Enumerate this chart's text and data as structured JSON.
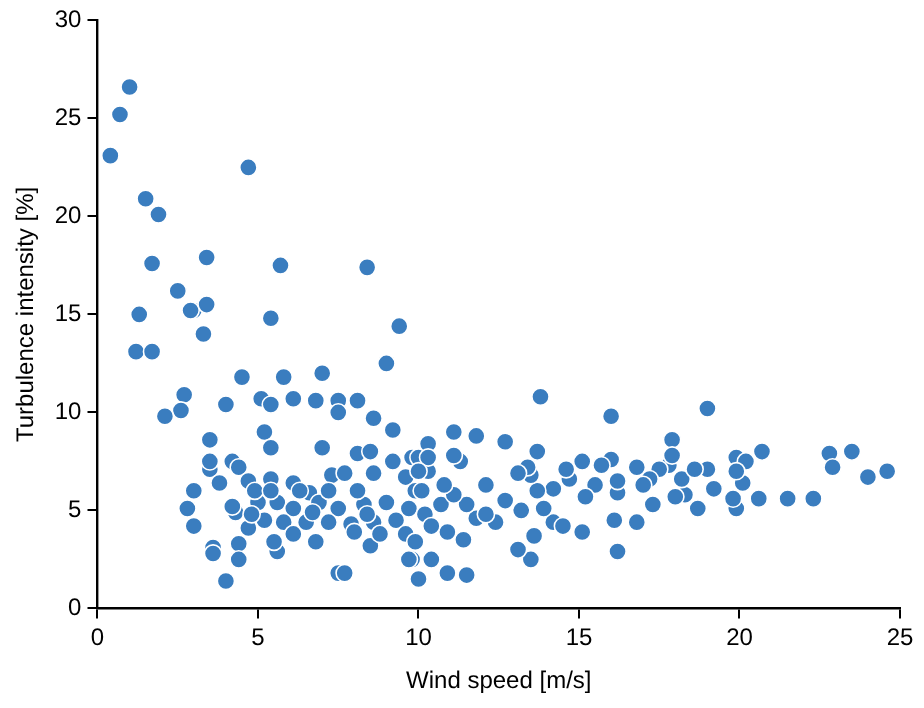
{
  "chart_data": {
    "type": "scatter",
    "xlabel": "Wind speed [m/s]",
    "ylabel": "Turbulence intensity [%]",
    "xlim": [
      0,
      25
    ],
    "xticks": [
      0,
      5,
      10,
      15,
      20,
      25
    ],
    "ylim": [
      0,
      30
    ],
    "yticks": [
      0,
      5,
      10,
      15,
      20,
      25,
      30
    ],
    "grid": false,
    "legend": false,
    "marker": "circle",
    "series": [
      {
        "color": "#3a7dbf",
        "x": [
          1.0,
          0.7,
          0.4,
          1.5,
          1.9,
          1.7,
          3.0,
          1.3,
          2.9,
          3.4,
          3.3,
          2.5,
          1.2,
          1.7,
          3.4,
          5.7,
          8.4,
          4.7,
          5.4,
          9.4,
          4.5,
          5.8,
          7.0,
          9.0,
          2.7,
          2.6,
          2.1,
          4.0,
          5.1,
          5.4,
          6.1,
          6.8,
          7.5,
          8.1,
          7.5,
          8.6,
          9.2,
          5.2,
          3.5,
          5.4,
          7.0,
          8.1,
          8.5,
          9.8,
          3.5,
          3.5,
          4.2,
          4.4,
          3.0,
          2.8,
          3.0,
          3.6,
          3.6,
          4.4,
          4.4,
          4.0,
          5.6,
          7.5,
          7.7,
          9.8,
          3.8,
          4.7,
          5.4,
          6.1,
          6.6,
          7.3,
          7.7,
          8.6,
          9.2,
          9.6,
          5.0,
          5.6,
          6.1,
          6.9,
          7.5,
          8.3,
          9.0,
          9.7,
          4.3,
          5.2,
          5.8,
          6.5,
          7.2,
          7.9,
          8.6,
          9.3,
          4.7,
          5.5,
          6.1,
          6.8,
          8.0,
          8.5,
          8.8,
          9.6,
          9.7,
          4.9,
          6.3,
          8.1,
          9.9,
          5.4,
          4.2,
          7.2,
          4.8,
          6.7,
          8.4,
          10.0,
          10.3,
          10.1,
          10.2,
          9.9,
          13.8,
          16.0,
          19.0,
          11.1,
          11.8,
          12.7,
          10.3,
          13.7,
          17.9,
          20.7,
          22.8,
          23.5,
          22.9,
          24.6,
          24.0,
          21.5,
          22.3,
          20.6,
          19.9,
          19.8,
          20.1,
          19.9,
          20.2,
          19.9,
          19.2,
          18.7,
          18.3,
          18.0,
          18.2,
          19.0,
          18.6,
          17.8,
          17.9,
          17.5,
          17.2,
          17.0,
          17.3,
          16.8,
          16.8,
          16.1,
          16.2,
          16.2,
          16.2,
          16.0,
          15.7,
          15.5,
          15.2,
          15.1,
          15.1,
          14.7,
          14.6,
          14.2,
          14.2,
          14.5,
          13.9,
          13.7,
          13.6,
          13.5,
          13.1,
          13.2,
          13.5,
          13.4,
          13.1,
          10.9,
          11.5,
          10.0,
          10.4,
          11.4,
          10.9,
          12.4,
          11.8,
          12.1,
          11.5,
          10.7,
          11.1,
          12.1,
          10.8,
          11.3,
          11.1,
          10.3,
          10.0,
          12.7,
          10.4
        ],
        "values": [
          26.6,
          25.2,
          23.1,
          20.9,
          20.1,
          17.6,
          15.2,
          15.0,
          15.2,
          17.9,
          14.0,
          16.2,
          13.1,
          13.1,
          15.5,
          17.5,
          17.4,
          22.5,
          14.8,
          14.4,
          11.8,
          11.8,
          12.0,
          12.5,
          10.9,
          10.1,
          9.8,
          10.4,
          10.7,
          10.4,
          10.7,
          10.6,
          10.6,
          10.6,
          10.0,
          9.7,
          9.1,
          9.0,
          8.6,
          8.2,
          8.2,
          7.9,
          8.0,
          7.7,
          7.1,
          7.5,
          7.5,
          7.2,
          6.0,
          5.1,
          4.2,
          3.1,
          2.8,
          3.3,
          2.5,
          1.4,
          2.9,
          1.8,
          1.8,
          2.5,
          6.4,
          6.5,
          6.6,
          6.4,
          5.9,
          6.8,
          6.9,
          6.9,
          7.5,
          6.7,
          5.4,
          5.4,
          5.1,
          5.4,
          5.1,
          5.3,
          5.4,
          5.1,
          4.9,
          4.5,
          4.4,
          4.4,
          4.4,
          4.3,
          4.4,
          4.5,
          4.1,
          3.4,
          3.8,
          3.4,
          3.9,
          3.2,
          3.8,
          3.8,
          2.5,
          6.0,
          6.0,
          6.0,
          6.0,
          6.0,
          5.2,
          6.0,
          4.8,
          4.9,
          4.8,
          7.7,
          7.0,
          6.0,
          4.8,
          3.4,
          10.8,
          9.8,
          10.2,
          9.0,
          8.8,
          8.5,
          8.4,
          8.0,
          8.6,
          8.0,
          7.9,
          8.0,
          7.2,
          7.0,
          6.7,
          5.6,
          5.6,
          5.6,
          5.1,
          5.6,
          6.4,
          7.7,
          7.5,
          7.0,
          6.1,
          5.1,
          5.8,
          5.7,
          6.6,
          7.1,
          7.1,
          7.3,
          7.8,
          7.1,
          6.6,
          6.3,
          5.3,
          7.2,
          4.4,
          4.5,
          2.9,
          5.9,
          6.5,
          7.6,
          7.3,
          6.3,
          5.7,
          3.9,
          7.5,
          6.6,
          7.1,
          6.1,
          4.4,
          4.2,
          5.1,
          6.0,
          3.7,
          2.5,
          3.0,
          5.0,
          6.8,
          7.2,
          6.9,
          1.8,
          1.7,
          1.5,
          2.5,
          3.5,
          3.9,
          4.4,
          4.6,
          4.8,
          5.3,
          5.3,
          5.8,
          6.3,
          6.3,
          7.5,
          7.8,
          7.7,
          7.0,
          5.5,
          4.2
        ]
      }
    ]
  }
}
